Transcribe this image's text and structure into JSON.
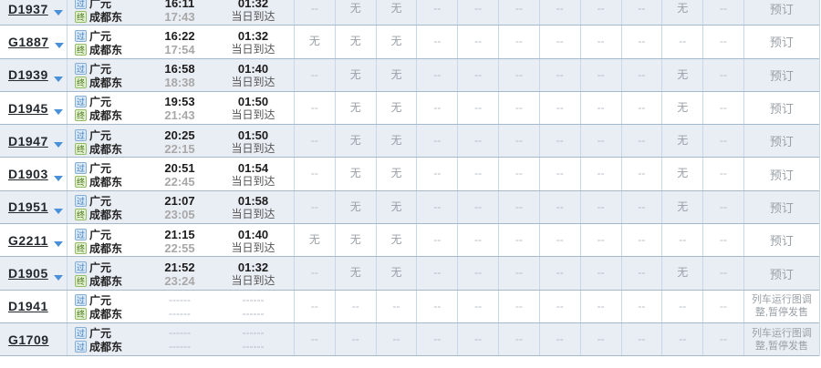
{
  "labels": {
    "book": "预订",
    "suspended": "列车运行图调整,暂停发售",
    "same_day": "当日到达",
    "no_ticket": "无",
    "empty": "--",
    "time_placeholder": "------"
  },
  "icons": {
    "pass_station": "过",
    "terminal_station": "终",
    "dropdown": "chevron-down"
  },
  "colors": {
    "row_alt_bg": "#e9edf4",
    "row_bg": "#ffffff",
    "border_horizontal": "#a5b9cc",
    "border_vertical": "#c9d8e8",
    "arrow_blue": "#4a90d9",
    "muted_text": "#9aa0a6"
  },
  "trains": [
    {
      "train_no": "D1937",
      "expandable": true,
      "from_type": "pass",
      "from": "广元",
      "to_type": "terminal",
      "to": "成都东",
      "depart": "16:11",
      "arrive": "17:43",
      "duration": "01:32",
      "duration_note": "当日到达",
      "seats": [
        "--",
        "无",
        "无",
        "--",
        "--",
        "--",
        "--",
        "--",
        "--",
        "无",
        "--"
      ],
      "remark": "book"
    },
    {
      "train_no": "G1887",
      "expandable": true,
      "from_type": "pass",
      "from": "广元",
      "to_type": "terminal",
      "to": "成都东",
      "depart": "16:22",
      "arrive": "17:54",
      "duration": "01:32",
      "duration_note": "当日到达",
      "seats": [
        "无",
        "无",
        "无",
        "--",
        "--",
        "--",
        "--",
        "--",
        "--",
        "--",
        "--"
      ],
      "remark": "book"
    },
    {
      "train_no": "D1939",
      "expandable": true,
      "from_type": "pass",
      "from": "广元",
      "to_type": "terminal",
      "to": "成都东",
      "depart": "16:58",
      "arrive": "18:38",
      "duration": "01:40",
      "duration_note": "当日到达",
      "seats": [
        "--",
        "无",
        "无",
        "--",
        "--",
        "--",
        "--",
        "--",
        "--",
        "无",
        "--"
      ],
      "remark": "book"
    },
    {
      "train_no": "D1945",
      "expandable": true,
      "from_type": "pass",
      "from": "广元",
      "to_type": "terminal",
      "to": "成都东",
      "depart": "19:53",
      "arrive": "21:43",
      "duration": "01:50",
      "duration_note": "当日到达",
      "seats": [
        "--",
        "无",
        "无",
        "--",
        "--",
        "--",
        "--",
        "--",
        "--",
        "无",
        "--"
      ],
      "remark": "book"
    },
    {
      "train_no": "D1947",
      "expandable": true,
      "from_type": "pass",
      "from": "广元",
      "to_type": "terminal",
      "to": "成都东",
      "depart": "20:25",
      "arrive": "22:15",
      "duration": "01:50",
      "duration_note": "当日到达",
      "seats": [
        "--",
        "无",
        "无",
        "--",
        "--",
        "--",
        "--",
        "--",
        "--",
        "无",
        "--"
      ],
      "remark": "book"
    },
    {
      "train_no": "D1903",
      "expandable": true,
      "from_type": "pass",
      "from": "广元",
      "to_type": "terminal",
      "to": "成都东",
      "depart": "20:51",
      "arrive": "22:45",
      "duration": "01:54",
      "duration_note": "当日到达",
      "seats": [
        "--",
        "无",
        "无",
        "--",
        "--",
        "--",
        "--",
        "--",
        "--",
        "无",
        "--"
      ],
      "remark": "book"
    },
    {
      "train_no": "D1951",
      "expandable": true,
      "from_type": "pass",
      "from": "广元",
      "to_type": "terminal",
      "to": "成都东",
      "depart": "21:07",
      "arrive": "23:05",
      "duration": "01:58",
      "duration_note": "当日到达",
      "seats": [
        "--",
        "无",
        "无",
        "--",
        "--",
        "--",
        "--",
        "--",
        "--",
        "无",
        "--"
      ],
      "remark": "book"
    },
    {
      "train_no": "G2211",
      "expandable": true,
      "from_type": "pass",
      "from": "广元",
      "to_type": "terminal",
      "to": "成都东",
      "depart": "21:15",
      "arrive": "22:55",
      "duration": "01:40",
      "duration_note": "当日到达",
      "seats": [
        "无",
        "无",
        "无",
        "--",
        "--",
        "--",
        "--",
        "--",
        "--",
        "--",
        "--"
      ],
      "remark": "book"
    },
    {
      "train_no": "D1905",
      "expandable": true,
      "from_type": "pass",
      "from": "广元",
      "to_type": "terminal",
      "to": "成都东",
      "depart": "21:52",
      "arrive": "23:24",
      "duration": "01:32",
      "duration_note": "当日到达",
      "seats": [
        "--",
        "无",
        "无",
        "--",
        "--",
        "--",
        "--",
        "--",
        "--",
        "无",
        "--"
      ],
      "remark": "book"
    },
    {
      "train_no": "D1941",
      "expandable": false,
      "from_type": "pass",
      "from": "广元",
      "to_type": "terminal",
      "to": "成都东",
      "depart": "------",
      "arrive": "------",
      "duration": "------",
      "duration_note": "------",
      "seats": [
        "--",
        "--",
        "--",
        "--",
        "--",
        "--",
        "--",
        "--",
        "--",
        "--",
        "--"
      ],
      "remark": "suspended"
    },
    {
      "train_no": "G1709",
      "expandable": false,
      "from_type": "pass",
      "from": "广元",
      "to_type": "pass",
      "to": "成都东",
      "depart": "------",
      "arrive": "------",
      "duration": "------",
      "duration_note": "------",
      "seats": [
        "--",
        "--",
        "--",
        "--",
        "--",
        "--",
        "--",
        "--",
        "--",
        "--",
        "--"
      ],
      "remark": "suspended"
    }
  ]
}
